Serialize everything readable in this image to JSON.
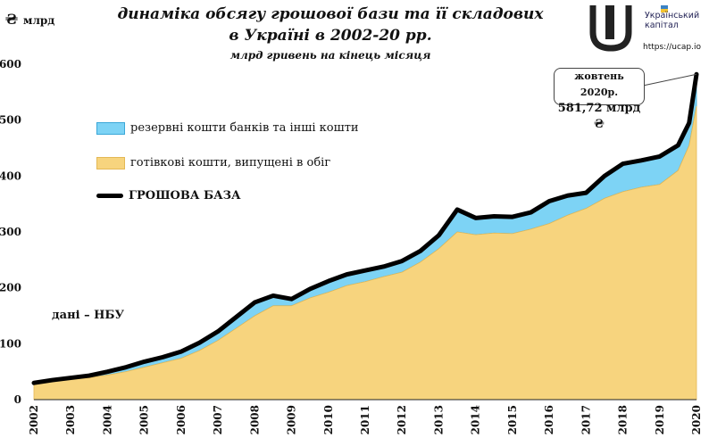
{
  "header": {
    "title_line1": "динаміка обсягу грошової бази та її складових",
    "title_line2": "в Україні в 2002-20 рр.",
    "subtitle": "млрд гривень на кінець місяця",
    "unit_symbol": "₴",
    "unit_label": "млрд"
  },
  "logo": {
    "line1": "Український",
    "line2": "капітал",
    "url": "https://ucap.io"
  },
  "source_note": "дані – НБУ",
  "callout": {
    "date_label": "жовтень 2020р.",
    "value_label": "581,72 млрд ₴"
  },
  "legend": {
    "reserves": "резервні кошти банків та інші кошти",
    "cash": "готівкові кошти, випущені в обіг",
    "base": "ГРОШОВА БАЗА"
  },
  "colors": {
    "reserves": "#7dd3f5",
    "cash": "#f7d47e",
    "base": "#000000",
    "reserves_edge": "#3aa7d8",
    "cash_edge": "#e4b855"
  },
  "chart_data": {
    "type": "area",
    "xlabel": "",
    "ylabel": "млрд",
    "ylim": [
      0,
      600
    ],
    "yticks": [
      0,
      100,
      200,
      300,
      400,
      500,
      600
    ],
    "xticks": [
      "2002",
      "2003",
      "2004",
      "2005",
      "2006",
      "2007",
      "2008",
      "2009",
      "2010",
      "2011",
      "2012",
      "2013",
      "2014",
      "2015",
      "2016",
      "2017",
      "2018",
      "2019",
      "2020"
    ],
    "x": [
      2002.0,
      2002.5,
      2003.0,
      2003.5,
      2004.0,
      2004.5,
      2005.0,
      2005.5,
      2006.0,
      2006.5,
      2007.0,
      2007.5,
      2008.0,
      2008.5,
      2009.0,
      2009.5,
      2010.0,
      2010.5,
      2011.0,
      2011.5,
      2012.0,
      2012.5,
      2013.0,
      2013.5,
      2014.0,
      2014.5,
      2015.0,
      2015.5,
      2016.0,
      2016.5,
      2017.0,
      2017.5,
      2018.0,
      2018.5,
      2019.0,
      2019.5,
      2019.8,
      2020.0
    ],
    "series": [
      {
        "name": "готівкові кошти, випущені в обіг",
        "values": [
          30,
          33,
          37,
          39,
          44,
          50,
          58,
          66,
          74,
          88,
          106,
          128,
          150,
          168,
          168,
          182,
          192,
          204,
          211,
          220,
          228,
          246,
          270,
          300,
          295,
          298,
          297,
          305,
          315,
          330,
          342,
          360,
          372,
          380,
          385,
          410,
          455,
          525
        ]
      },
      {
        "name": "резервні кошти банків та інші кошти",
        "values": [
          0,
          2,
          2,
          4,
          6,
          8,
          10,
          10,
          12,
          14,
          16,
          20,
          24,
          18,
          12,
          16,
          20,
          20,
          20,
          18,
          20,
          20,
          24,
          40,
          30,
          30,
          30,
          30,
          40,
          35,
          28,
          40,
          50,
          48,
          50,
          45,
          40,
          57
        ]
      },
      {
        "name": "ГРОШОВА БАЗА",
        "values": [
          30,
          35,
          39,
          43,
          50,
          58,
          68,
          76,
          86,
          102,
          122,
          148,
          174,
          186,
          180,
          198,
          212,
          224,
          231,
          238,
          248,
          266,
          294,
          340,
          325,
          328,
          327,
          335,
          355,
          365,
          370,
          400,
          422,
          428,
          435,
          455,
          495,
          582
        ]
      }
    ]
  }
}
